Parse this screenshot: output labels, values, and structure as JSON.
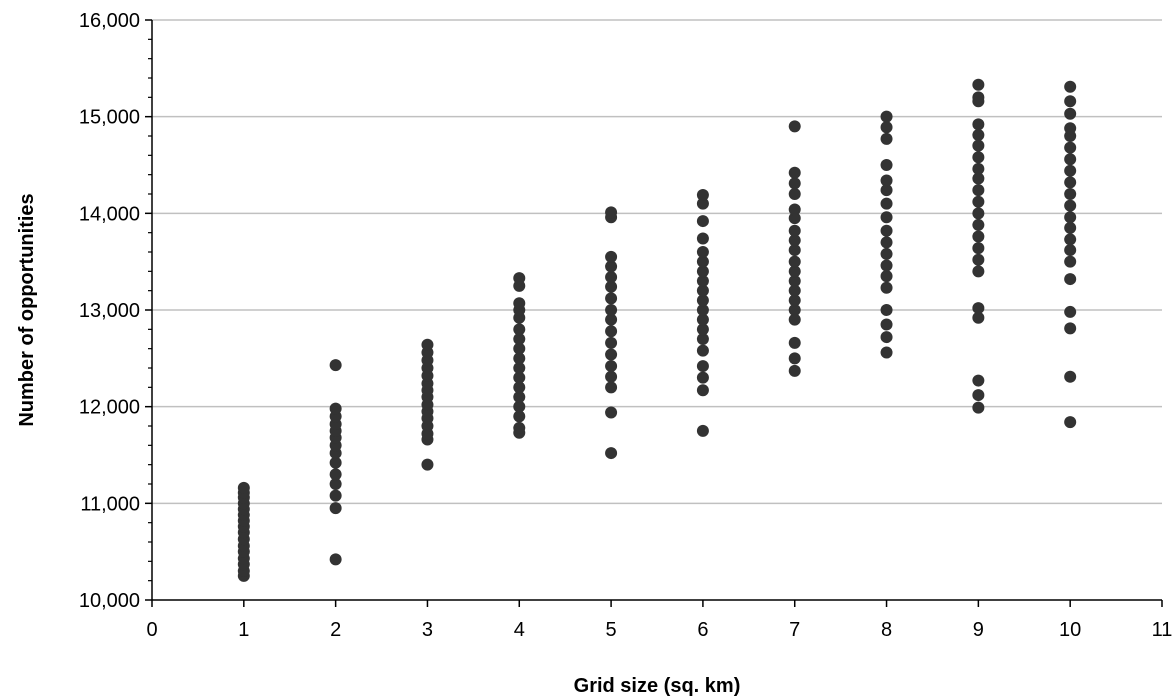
{
  "chart_data": {
    "type": "scatter",
    "title": "",
    "xlabel": "Grid size (sq. km)",
    "ylabel": "Number of opportunities",
    "xlim": [
      0,
      11
    ],
    "ylim": [
      10000,
      16000
    ],
    "x_ticks": [
      0,
      1,
      2,
      3,
      4,
      5,
      6,
      7,
      8,
      9,
      10,
      11
    ],
    "x_tick_labels": [
      "0",
      "1",
      "2",
      "3",
      "4",
      "5",
      "6",
      "7",
      "8",
      "9",
      "10",
      "11"
    ],
    "y_ticks": [
      10000,
      11000,
      12000,
      13000,
      14000,
      15000,
      16000
    ],
    "y_tick_labels": [
      "10,000",
      "11,000",
      "12,000",
      "13,000",
      "14,000",
      "15,000",
      "16,000"
    ],
    "grid": "horizontal",
    "legend": "none",
    "marker_color": "#333333",
    "gridline_color": "#c0c0c0",
    "series": [
      {
        "points": [
          [
            1,
            10250
          ],
          [
            1,
            10300
          ],
          [
            1,
            10370
          ],
          [
            1,
            10430
          ],
          [
            1,
            10500
          ],
          [
            1,
            10560
          ],
          [
            1,
            10630
          ],
          [
            1,
            10700
          ],
          [
            1,
            10760
          ],
          [
            1,
            10820
          ],
          [
            1,
            10880
          ],
          [
            1,
            10940
          ],
          [
            1,
            11000
          ],
          [
            1,
            11060
          ],
          [
            1,
            11110
          ],
          [
            1,
            11160
          ],
          [
            2,
            10420
          ],
          [
            2,
            10950
          ],
          [
            2,
            11080
          ],
          [
            2,
            11200
          ],
          [
            2,
            11300
          ],
          [
            2,
            11420
          ],
          [
            2,
            11520
          ],
          [
            2,
            11600
          ],
          [
            2,
            11680
          ],
          [
            2,
            11750
          ],
          [
            2,
            11820
          ],
          [
            2,
            11900
          ],
          [
            2,
            11980
          ],
          [
            2,
            12430
          ],
          [
            3,
            11400
          ],
          [
            3,
            11660
          ],
          [
            3,
            11720
          ],
          [
            3,
            11800
          ],
          [
            3,
            11880
          ],
          [
            3,
            11950
          ],
          [
            3,
            12020
          ],
          [
            3,
            12100
          ],
          [
            3,
            12170
          ],
          [
            3,
            12240
          ],
          [
            3,
            12320
          ],
          [
            3,
            12400
          ],
          [
            3,
            12480
          ],
          [
            3,
            12560
          ],
          [
            3,
            12640
          ],
          [
            4,
            11730
          ],
          [
            4,
            11780
          ],
          [
            4,
            11900
          ],
          [
            4,
            12000
          ],
          [
            4,
            12100
          ],
          [
            4,
            12200
          ],
          [
            4,
            12300
          ],
          [
            4,
            12400
          ],
          [
            4,
            12500
          ],
          [
            4,
            12600
          ],
          [
            4,
            12700
          ],
          [
            4,
            12800
          ],
          [
            4,
            12920
          ],
          [
            4,
            13000
          ],
          [
            4,
            13070
          ],
          [
            4,
            13250
          ],
          [
            4,
            13330
          ],
          [
            5,
            11520
          ],
          [
            5,
            11940
          ],
          [
            5,
            12200
          ],
          [
            5,
            12310
          ],
          [
            5,
            12420
          ],
          [
            5,
            12540
          ],
          [
            5,
            12660
          ],
          [
            5,
            12780
          ],
          [
            5,
            12900
          ],
          [
            5,
            13000
          ],
          [
            5,
            13120
          ],
          [
            5,
            13240
          ],
          [
            5,
            13340
          ],
          [
            5,
            13450
          ],
          [
            5,
            13550
          ],
          [
            5,
            13960
          ],
          [
            5,
            14010
          ],
          [
            6,
            11750
          ],
          [
            6,
            12170
          ],
          [
            6,
            12300
          ],
          [
            6,
            12420
          ],
          [
            6,
            12580
          ],
          [
            6,
            12700
          ],
          [
            6,
            12800
          ],
          [
            6,
            12900
          ],
          [
            6,
            13000
          ],
          [
            6,
            13100
          ],
          [
            6,
            13200
          ],
          [
            6,
            13300
          ],
          [
            6,
            13400
          ],
          [
            6,
            13500
          ],
          [
            6,
            13600
          ],
          [
            6,
            13740
          ],
          [
            6,
            13920
          ],
          [
            6,
            14100
          ],
          [
            6,
            14190
          ],
          [
            7,
            12370
          ],
          [
            7,
            12500
          ],
          [
            7,
            12660
          ],
          [
            7,
            12900
          ],
          [
            7,
            13000
          ],
          [
            7,
            13100
          ],
          [
            7,
            13200
          ],
          [
            7,
            13300
          ],
          [
            7,
            13400
          ],
          [
            7,
            13500
          ],
          [
            7,
            13620
          ],
          [
            7,
            13720
          ],
          [
            7,
            13820
          ],
          [
            7,
            13950
          ],
          [
            7,
            14040
          ],
          [
            7,
            14200
          ],
          [
            7,
            14310
          ],
          [
            7,
            14420
          ],
          [
            7,
            14900
          ],
          [
            8,
            12560
          ],
          [
            8,
            12720
          ],
          [
            8,
            12850
          ],
          [
            8,
            13000
          ],
          [
            8,
            13230
          ],
          [
            8,
            13350
          ],
          [
            8,
            13460
          ],
          [
            8,
            13580
          ],
          [
            8,
            13700
          ],
          [
            8,
            13820
          ],
          [
            8,
            13960
          ],
          [
            8,
            14100
          ],
          [
            8,
            14240
          ],
          [
            8,
            14340
          ],
          [
            8,
            14500
          ],
          [
            8,
            14770
          ],
          [
            8,
            14890
          ],
          [
            8,
            15000
          ],
          [
            9,
            11990
          ],
          [
            9,
            12120
          ],
          [
            9,
            12270
          ],
          [
            9,
            12920
          ],
          [
            9,
            13020
          ],
          [
            9,
            13400
          ],
          [
            9,
            13520
          ],
          [
            9,
            13640
          ],
          [
            9,
            13760
          ],
          [
            9,
            13880
          ],
          [
            9,
            14000
          ],
          [
            9,
            14120
          ],
          [
            9,
            14240
          ],
          [
            9,
            14360
          ],
          [
            9,
            14460
          ],
          [
            9,
            14580
          ],
          [
            9,
            14700
          ],
          [
            9,
            14810
          ],
          [
            9,
            14920
          ],
          [
            9,
            15160
          ],
          [
            9,
            15200
          ],
          [
            9,
            15330
          ],
          [
            10,
            11840
          ],
          [
            10,
            12310
          ],
          [
            10,
            12810
          ],
          [
            10,
            12980
          ],
          [
            10,
            13320
          ],
          [
            10,
            13500
          ],
          [
            10,
            13620
          ],
          [
            10,
            13730
          ],
          [
            10,
            13850
          ],
          [
            10,
            13960
          ],
          [
            10,
            14080
          ],
          [
            10,
            14200
          ],
          [
            10,
            14320
          ],
          [
            10,
            14440
          ],
          [
            10,
            14560
          ],
          [
            10,
            14680
          ],
          [
            10,
            14800
          ],
          [
            10,
            14880
          ],
          [
            10,
            15030
          ],
          [
            10,
            15160
          ],
          [
            10,
            15310
          ]
        ]
      }
    ]
  }
}
